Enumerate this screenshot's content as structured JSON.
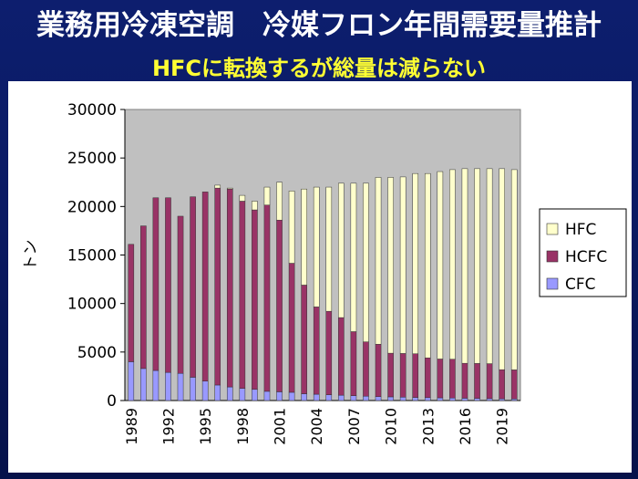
{
  "page": {
    "title": "業務用冷凍空調　冷媒フロン年間需要量推計",
    "subtitle": "HFCに転換するが総量は減らない"
  },
  "colors": {
    "background": "#0a1a63",
    "title": "#ffffff",
    "subtitle": "#ffff33",
    "plot_background": "#c0c0c0",
    "hfc": "#ffffcc",
    "hcfc": "#993366",
    "cfc": "#9999ff"
  },
  "chart_data": {
    "type": "bar",
    "stacked": true,
    "ylabel": "トン",
    "ylim": [
      0,
      30000
    ],
    "yticks": [
      0,
      5000,
      10000,
      15000,
      20000,
      25000,
      30000
    ],
    "categories": [
      "1989",
      "1990",
      "1991",
      "1992",
      "1993",
      "1994",
      "1995",
      "1996",
      "1997",
      "1998",
      "1999",
      "2000",
      "2001",
      "2002",
      "2003",
      "2004",
      "2005",
      "2006",
      "2007",
      "2008",
      "2009",
      "2010",
      "2011",
      "2012",
      "2013",
      "2014",
      "2015",
      "2016",
      "2017",
      "2018",
      "2019",
      "2020"
    ],
    "xtick_labels": [
      "1989",
      "1992",
      "1995",
      "1998",
      "2001",
      "2004",
      "2007",
      "2010",
      "2013",
      "2016",
      "2019"
    ],
    "grid": false,
    "legend_position": "right",
    "series": [
      {
        "name": "CFC",
        "color": "#9999ff",
        "values": [
          4000,
          3300,
          3100,
          2900,
          2800,
          2400,
          2000,
          1600,
          1400,
          1250,
          1150,
          950,
          900,
          850,
          700,
          650,
          600,
          550,
          500,
          450,
          400,
          380,
          350,
          320,
          300,
          280,
          260,
          240,
          220,
          200,
          180,
          160
        ]
      },
      {
        "name": "HCFC",
        "color": "#993366",
        "values": [
          12100,
          14700,
          17800,
          18000,
          16200,
          18600,
          19500,
          20300,
          20400,
          19300,
          18500,
          19200,
          17700,
          13300,
          11200,
          9000,
          8600,
          8000,
          6600,
          5600,
          5400,
          4500,
          4500,
          4500,
          4100,
          4000,
          4000,
          3600,
          3600,
          3600,
          3000,
          3000
        ]
      },
      {
        "name": "HFC",
        "color": "#ffffcc",
        "values": [
          0,
          0,
          0,
          0,
          0,
          0,
          0,
          300,
          100,
          600,
          900,
          1850,
          3900,
          7450,
          9900,
          12350,
          12800,
          13850,
          15300,
          16350,
          17200,
          18120,
          18200,
          18580,
          19000,
          19320,
          19540,
          20060,
          20080,
          20100,
          20720,
          20640
        ]
      }
    ]
  }
}
